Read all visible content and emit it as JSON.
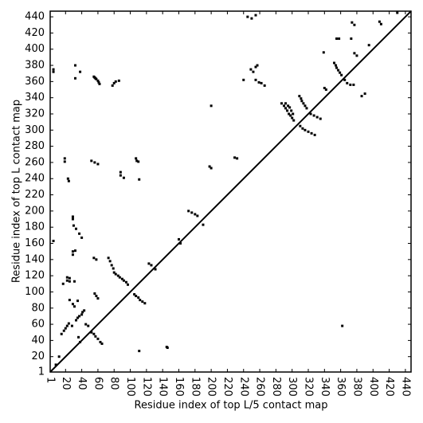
{
  "chart_data": {
    "type": "scatter",
    "x_label": "Residue index of top L/5 contact map",
    "y_label": "Residue index of top L contact map",
    "xlim": [
      1,
      447
    ],
    "ylim": [
      1,
      447
    ],
    "xticks": [
      1,
      20,
      40,
      60,
      80,
      100,
      120,
      140,
      160,
      180,
      200,
      220,
      240,
      260,
      280,
      300,
      320,
      340,
      360,
      380,
      400,
      420,
      440
    ],
    "yticks": [
      1,
      20,
      40,
      60,
      80,
      100,
      120,
      140,
      160,
      180,
      200,
      220,
      240,
      260,
      280,
      300,
      320,
      340,
      360,
      380,
      400,
      420,
      440
    ],
    "grid": false,
    "line": {
      "color": "#000000",
      "x": [
        1,
        447
      ],
      "y": [
        1,
        447
      ]
    },
    "series": [
      {
        "color": "#000000",
        "x": [
          5,
          5,
          32,
          32,
          38,
          55,
          56,
          57,
          58,
          60,
          61,
          62,
          78,
          80,
          82,
          86,
          19,
          19,
          23,
          24,
          52,
          56,
          60,
          88,
          88,
          92,
          107,
          108,
          110,
          111,
          5,
          29,
          29,
          30,
          33,
          37,
          40,
          29,
          29,
          32,
          22,
          22,
          25,
          25,
          31,
          17,
          55,
          58,
          73,
          75,
          77,
          79,
          80,
          82,
          85,
          87,
          90,
          92,
          95,
          97,
          123,
          126,
          131,
          25,
          29,
          31,
          35,
          12,
          160,
          162,
          172,
          176,
          180,
          183,
          190,
          198,
          200,
          200,
          229,
          232,
          240,
          245,
          250,
          255,
          249,
          252,
          255,
          257,
          255,
          259,
          262,
          266,
          287,
          290,
          292,
          294,
          296,
          298,
          300,
          302,
          292,
          295,
          297,
          299,
          301,
          309,
          311,
          312,
          314,
          316,
          318,
          323,
          327,
          331,
          335,
          339,
          340,
          342,
          355,
          358,
          352,
          354,
          355,
          357,
          359,
          361,
          365,
          368,
          372,
          376,
          374,
          377,
          373,
          377,
          380,
          386,
          395,
          408,
          410,
          430,
          15,
          18,
          20,
          22,
          24,
          28,
          33,
          35,
          37,
          40,
          41,
          43,
          45,
          48,
          52,
          55,
          57,
          60,
          63,
          65,
          56,
          58,
          60,
          38,
          36,
          8,
          105,
          107,
          110,
          112,
          115,
          118,
          111,
          145,
          146,
          310,
          313,
          316,
          320,
          324,
          328,
          362,
          390
        ],
        "y": [
          375,
          372,
          380,
          364,
          372,
          366,
          365,
          364,
          363,
          361,
          359,
          357,
          355,
          358,
          360,
          361,
          265,
          261,
          240,
          237,
          262,
          260,
          258,
          248,
          244,
          241,
          265,
          262,
          261,
          239,
          163,
          193,
          190,
          182,
          178,
          172,
          167,
          150,
          146,
          151,
          118,
          114,
          117,
          113,
          113,
          110,
          142,
          140,
          142,
          138,
          133,
          129,
          124,
          122,
          120,
          118,
          116,
          114,
          112,
          109,
          135,
          133,
          128,
          90,
          85,
          82,
          89,
          20,
          165,
          160,
          200,
          198,
          196,
          194,
          183,
          255,
          253,
          330,
          266,
          265,
          362,
          440,
          438,
          442,
          375,
          372,
          378,
          380,
          362,
          359,
          358,
          355,
          333,
          330,
          327,
          324,
          320,
          318,
          315,
          312,
          333,
          330,
          328,
          324,
          320,
          342,
          339,
          336,
          333,
          330,
          327,
          320,
          318,
          316,
          314,
          396,
          352,
          350,
          413,
          413,
          383,
          380,
          377,
          374,
          371,
          368,
          362,
          358,
          356,
          356,
          433,
          430,
          413,
          395,
          392,
          342,
          405,
          434,
          431,
          445,
          48,
          52,
          55,
          58,
          61,
          58,
          65,
          68,
          70,
          72,
          75,
          77,
          60,
          58,
          50,
          48,
          45,
          42,
          38,
          36,
          98,
          95,
          92,
          38,
          44,
          10,
          97,
          95,
          93,
          90,
          88,
          86,
          27,
          32,
          31,
          305,
          302,
          300,
          298,
          296,
          294,
          58,
          345
        ]
      }
    ]
  }
}
